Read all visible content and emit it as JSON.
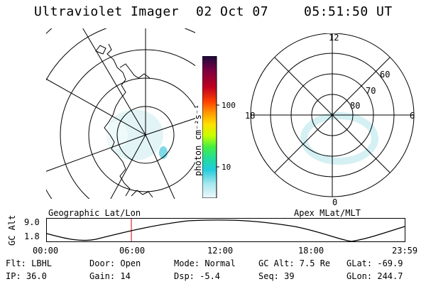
{
  "header": {
    "title": "Ultraviolet Imager",
    "date": "02 Oct 07",
    "time": "05:51:50 UT"
  },
  "colorbar": {
    "unit_label": "photon cm⁻²s⁻¹",
    "tick_100": "100",
    "tick_10": "10",
    "colors_top_to_bottom": [
      "#1a0a3a",
      "#7a0040",
      "#c00020",
      "#ff4000",
      "#ff9900",
      "#ffe000",
      "#c8ff00",
      "#44ee44",
      "#22dd99",
      "#22ccdd",
      "#a8e8ee",
      "#eef8fa"
    ]
  },
  "left_panel": {
    "label": "Geographic Lat/Lon"
  },
  "right_panel": {
    "label": "Apex MLat/MLT",
    "mlt_labels": {
      "top": "12",
      "left": "18",
      "right": "6",
      "bottom": "0"
    },
    "lat_labels": [
      "60",
      "70",
      "80"
    ]
  },
  "altitude_plot": {
    "ylabel": "GC Alt",
    "yticks": [
      "9.0",
      "1.8"
    ],
    "xticks": [
      "00:00",
      "06:00",
      "12:00",
      "18:00",
      "23:59"
    ],
    "marker_color": "#d00000"
  },
  "footer": {
    "flt": "Flt: LBHL",
    "ip": "IP: 36.0",
    "door": "Door: Open",
    "gain": "Gain: 14",
    "mode": "Mode: Normal",
    "dsp": "Dsp:    -5.4",
    "gcalt": "GC Alt: 7.5 Re",
    "seq": "Seq: 39",
    "glat": "GLat: -69.9",
    "glon": "GLon: 244.7"
  }
}
